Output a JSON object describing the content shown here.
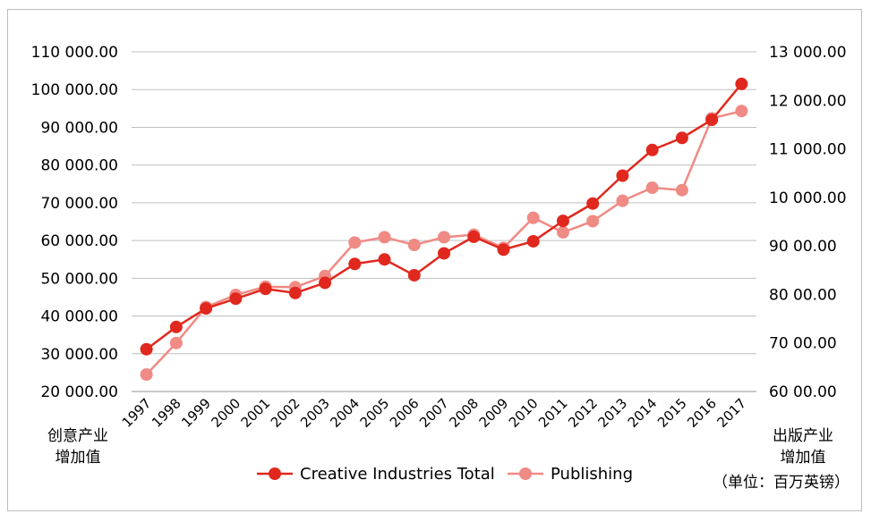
{
  "chart_data": {
    "type": "line",
    "categories": [
      "1997",
      "1998",
      "1999",
      "2000",
      "2001",
      "2002",
      "2003",
      "2004",
      "2005",
      "2006",
      "2007",
      "2008",
      "2009",
      "2010",
      "2011",
      "2012",
      "2013",
      "2014",
      "2015",
      "2016",
      "2017"
    ],
    "series": [
      {
        "name": "Creative Industries Total",
        "axis": "left",
        "color": "#e0281e",
        "values": [
          31200,
          37100,
          42000,
          44600,
          47200,
          46100,
          48800,
          53800,
          55000,
          50800,
          56600,
          61000,
          57600,
          59800,
          65200,
          69800,
          77200,
          84000,
          87200,
          92000,
          101500
        ]
      },
      {
        "name": "Publishing",
        "axis": "right",
        "color": "#f08a84",
        "values": [
          6350,
          7000,
          7740,
          7990,
          8160,
          8150,
          8380,
          9070,
          9180,
          9020,
          9180,
          9230,
          8960,
          9580,
          9280,
          9510,
          9930,
          10200,
          10150,
          11630,
          11780
        ]
      }
    ],
    "y_left": {
      "ylim": [
        20000,
        110000
      ],
      "ticks": [
        "20 000.00",
        "30 000.00",
        "40 000.00",
        "50 000.00",
        "60 000.00",
        "70 000.00",
        "80 000.00",
        "90 000.00",
        "100 000.00",
        "110 000.00"
      ],
      "label": "创意产业\n增加值"
    },
    "y_right": {
      "ylim": [
        6000,
        13000
      ],
      "ticks": [
        "60 00.00",
        "70 00.00",
        "80 00.00",
        "90 00.00",
        "10 000.00",
        "11 000.00",
        "12 000.00",
        "13 000.00"
      ],
      "label": "出版产业\n增加值"
    },
    "grid": true,
    "legend_position": "bottom-center",
    "unit_note": "（单位：百万英镑）"
  }
}
